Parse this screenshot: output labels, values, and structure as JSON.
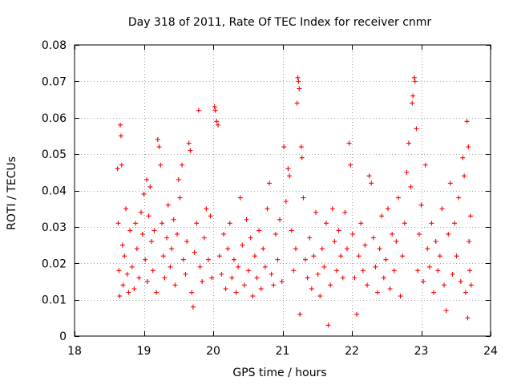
{
  "chart_data": {
    "type": "scatter",
    "title": "Day 318 of 2011, Rate Of TEC Index for receiver cnmr",
    "xlabel": "GPS time / hours",
    "ylabel": "ROTI / TECUs",
    "xlim": [
      18,
      24
    ],
    "ylim": [
      0,
      0.08
    ],
    "xticks": [
      18,
      19,
      20,
      21,
      22,
      23,
      24
    ],
    "xtick_labels": [
      "18",
      "19",
      "20",
      "21",
      "22",
      "23",
      "24"
    ],
    "yticks": [
      0,
      0.01,
      0.02,
      0.03,
      0.04,
      0.05,
      0.06,
      0.07,
      0.08
    ],
    "ytick_labels": [
      "0",
      "0.01",
      "0.02",
      "0.03",
      "0.04",
      "0.05",
      "0.06",
      "0.07",
      "0.08"
    ],
    "grid": true,
    "marker": "plus",
    "color": "#ff0000",
    "series": [
      {
        "name": "ROTI",
        "points": [
          [
            18.62,
            0.046
          ],
          [
            18.63,
            0.031
          ],
          [
            18.64,
            0.018
          ],
          [
            18.65,
            0.011
          ],
          [
            18.66,
            0.058
          ],
          [
            18.67,
            0.055
          ],
          [
            18.68,
            0.047
          ],
          [
            18.69,
            0.025
          ],
          [
            18.7,
            0.014
          ],
          [
            18.72,
            0.022
          ],
          [
            18.74,
            0.035
          ],
          [
            18.76,
            0.017
          ],
          [
            18.78,
            0.012
          ],
          [
            18.8,
            0.029
          ],
          [
            18.83,
            0.019
          ],
          [
            18.86,
            0.013
          ],
          [
            18.88,
            0.031
          ],
          [
            18.9,
            0.024
          ],
          [
            18.93,
            0.016
          ],
          [
            18.96,
            0.034
          ],
          [
            18.98,
            0.028
          ],
          [
            19.0,
            0.039
          ],
          [
            19.02,
            0.021
          ],
          [
            19.04,
            0.043
          ],
          [
            19.05,
            0.015
          ],
          [
            19.07,
            0.033
          ],
          [
            19.09,
            0.041
          ],
          [
            19.11,
            0.026
          ],
          [
            19.13,
            0.018
          ],
          [
            19.15,
            0.029
          ],
          [
            19.18,
            0.012
          ],
          [
            19.2,
            0.054
          ],
          [
            19.22,
            0.052
          ],
          [
            19.24,
            0.047
          ],
          [
            19.26,
            0.031
          ],
          [
            19.28,
            0.022
          ],
          [
            19.3,
            0.016
          ],
          [
            19.33,
            0.027
          ],
          [
            19.35,
            0.036
          ],
          [
            19.38,
            0.019
          ],
          [
            19.4,
            0.024
          ],
          [
            19.43,
            0.032
          ],
          [
            19.45,
            0.014
          ],
          [
            19.48,
            0.028
          ],
          [
            19.5,
            0.043
          ],
          [
            19.52,
            0.038
          ],
          [
            19.55,
            0.047
          ],
          [
            19.57,
            0.021
          ],
          [
            19.6,
            0.017
          ],
          [
            19.62,
            0.026
          ],
          [
            19.65,
            0.053
          ],
          [
            19.67,
            0.051
          ],
          [
            19.69,
            0.012
          ],
          [
            19.71,
            0.008
          ],
          [
            19.73,
            0.023
          ],
          [
            19.76,
            0.031
          ],
          [
            19.79,
            0.062
          ],
          [
            19.81,
            0.019
          ],
          [
            19.84,
            0.015
          ],
          [
            19.87,
            0.027
          ],
          [
            19.9,
            0.035
          ],
          [
            19.93,
            0.021
          ],
          [
            19.96,
            0.033
          ],
          [
            19.98,
            0.016
          ],
          [
            20.02,
            0.063
          ],
          [
            20.03,
            0.062
          ],
          [
            20.05,
            0.059
          ],
          [
            20.07,
            0.058
          ],
          [
            20.09,
            0.022
          ],
          [
            20.12,
            0.017
          ],
          [
            20.15,
            0.028
          ],
          [
            20.18,
            0.013
          ],
          [
            20.21,
            0.024
          ],
          [
            20.24,
            0.031
          ],
          [
            20.27,
            0.016
          ],
          [
            20.3,
            0.021
          ],
          [
            20.33,
            0.012
          ],
          [
            20.36,
            0.019
          ],
          [
            20.39,
            0.038
          ],
          [
            20.42,
            0.025
          ],
          [
            20.45,
            0.014
          ],
          [
            20.48,
            0.032
          ],
          [
            20.51,
            0.018
          ],
          [
            20.54,
            0.027
          ],
          [
            20.57,
            0.011
          ],
          [
            20.6,
            0.022
          ],
          [
            20.63,
            0.016
          ],
          [
            20.66,
            0.029
          ],
          [
            20.69,
            0.013
          ],
          [
            20.72,
            0.024
          ],
          [
            20.75,
            0.019
          ],
          [
            20.78,
            0.035
          ],
          [
            20.81,
            0.042
          ],
          [
            20.84,
            0.017
          ],
          [
            20.87,
            0.014
          ],
          [
            20.9,
            0.028
          ],
          [
            20.93,
            0.021
          ],
          [
            20.96,
            0.032
          ],
          [
            20.99,
            0.015
          ],
          [
            21.02,
            0.052
          ],
          [
            21.05,
            0.037
          ],
          [
            21.08,
            0.046
          ],
          [
            21.1,
            0.044
          ],
          [
            21.13,
            0.029
          ],
          [
            21.16,
            0.018
          ],
          [
            21.19,
            0.024
          ],
          [
            21.21,
            0.064
          ],
          [
            21.22,
            0.071
          ],
          [
            21.23,
            0.07
          ],
          [
            21.24,
            0.068
          ],
          [
            21.25,
            0.006
          ],
          [
            21.27,
            0.052
          ],
          [
            21.28,
            0.049
          ],
          [
            21.3,
            0.038
          ],
          [
            21.33,
            0.021
          ],
          [
            21.36,
            0.016
          ],
          [
            21.39,
            0.027
          ],
          [
            21.42,
            0.013
          ],
          [
            21.45,
            0.022
          ],
          [
            21.48,
            0.034
          ],
          [
            21.51,
            0.017
          ],
          [
            21.54,
            0.011
          ],
          [
            21.57,
            0.024
          ],
          [
            21.6,
            0.019
          ],
          [
            21.63,
            0.031
          ],
          [
            21.66,
            0.003
          ],
          [
            21.69,
            0.014
          ],
          [
            21.72,
            0.035
          ],
          [
            21.75,
            0.026
          ],
          [
            21.78,
            0.018
          ],
          [
            21.81,
            0.029
          ],
          [
            21.84,
            0.022
          ],
          [
            21.87,
            0.016
          ],
          [
            21.9,
            0.034
          ],
          [
            21.93,
            0.024
          ],
          [
            21.96,
            0.053
          ],
          [
            21.98,
            0.047
          ],
          [
            22.01,
            0.028
          ],
          [
            22.04,
            0.016
          ],
          [
            22.07,
            0.006
          ],
          [
            22.1,
            0.022
          ],
          [
            22.13,
            0.031
          ],
          [
            22.16,
            0.018
          ],
          [
            22.19,
            0.025
          ],
          [
            22.22,
            0.014
          ],
          [
            22.25,
            0.044
          ],
          [
            22.28,
            0.042
          ],
          [
            22.31,
            0.027
          ],
          [
            22.34,
            0.019
          ],
          [
            22.37,
            0.012
          ],
          [
            22.4,
            0.024
          ],
          [
            22.43,
            0.033
          ],
          [
            22.46,
            0.016
          ],
          [
            22.49,
            0.021
          ],
          [
            22.52,
            0.035
          ],
          [
            22.55,
            0.013
          ],
          [
            22.58,
            0.028
          ],
          [
            22.61,
            0.018
          ],
          [
            22.64,
            0.026
          ],
          [
            22.67,
            0.038
          ],
          [
            22.7,
            0.011
          ],
          [
            22.73,
            0.022
          ],
          [
            22.76,
            0.031
          ],
          [
            22.79,
            0.045
          ],
          [
            22.82,
            0.053
          ],
          [
            22.85,
            0.041
          ],
          [
            22.87,
            0.064
          ],
          [
            22.88,
            0.066
          ],
          [
            22.9,
            0.071
          ],
          [
            22.91,
            0.07
          ],
          [
            22.93,
            0.057
          ],
          [
            22.95,
            0.018
          ],
          [
            22.97,
            0.028
          ],
          [
            23.0,
            0.036
          ],
          [
            23.03,
            0.015
          ],
          [
            23.06,
            0.047
          ],
          [
            23.09,
            0.024
          ],
          [
            23.12,
            0.019
          ],
          [
            23.15,
            0.031
          ],
          [
            23.18,
            0.012
          ],
          [
            23.21,
            0.026
          ],
          [
            23.24,
            0.018
          ],
          [
            23.27,
            0.022
          ],
          [
            23.3,
            0.035
          ],
          [
            23.33,
            0.014
          ],
          [
            23.36,
            0.007
          ],
          [
            23.39,
            0.028
          ],
          [
            23.42,
            0.042
          ],
          [
            23.45,
            0.017
          ],
          [
            23.48,
            0.031
          ],
          [
            23.51,
            0.022
          ],
          [
            23.54,
            0.038
          ],
          [
            23.57,
            0.015
          ],
          [
            23.6,
            0.049
          ],
          [
            23.62,
            0.044
          ],
          [
            23.64,
            0.012
          ],
          [
            23.66,
            0.059
          ],
          [
            23.67,
            0.005
          ],
          [
            23.68,
            0.052
          ],
          [
            23.69,
            0.026
          ],
          [
            23.7,
            0.018
          ],
          [
            23.71,
            0.033
          ],
          [
            23.72,
            0.014
          ]
        ]
      }
    ]
  }
}
